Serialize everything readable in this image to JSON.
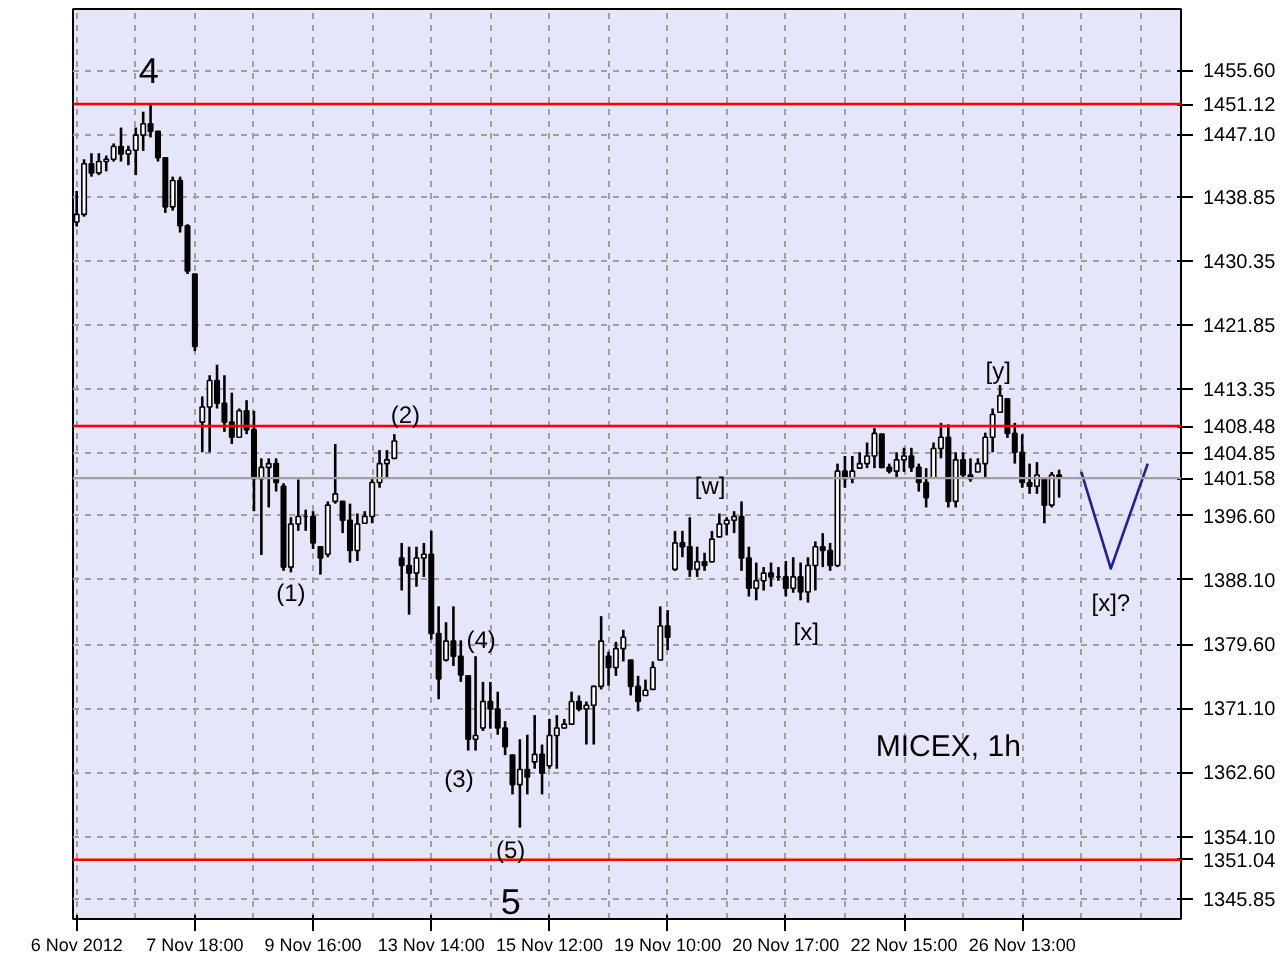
{
  "chart_data": {
    "type": "candlestick",
    "ylim": [
      1343.2,
      1463.7
    ],
    "categories": [
      "6 Nov 2012",
      null,
      null,
      null,
      null,
      null,
      null,
      null,
      null,
      null,
      null,
      null,
      null,
      null,
      null,
      null,
      "7 Nov 18:00",
      null,
      null,
      null,
      null,
      null,
      null,
      null,
      null,
      null,
      null,
      null,
      null,
      null,
      null,
      null,
      "9 Nov 16:00",
      null,
      null,
      null,
      null,
      null,
      null,
      null,
      null,
      null,
      null,
      null,
      null,
      null,
      null,
      null,
      "13 Nov 14:00",
      null,
      null,
      null,
      null,
      null,
      null,
      null,
      null,
      null,
      null,
      null,
      null,
      null,
      null,
      null,
      "15 Nov 12:00",
      null,
      null,
      null,
      null,
      null,
      null,
      null,
      null,
      null,
      null,
      null,
      null,
      null,
      null,
      null,
      "19 Nov 10:00",
      null,
      null,
      null,
      null,
      null,
      null,
      null,
      null,
      null,
      null,
      null,
      null,
      null,
      null,
      null,
      "20 Nov 17:00",
      null,
      null,
      null,
      null,
      null,
      null,
      null,
      null,
      null,
      null,
      null,
      null,
      null,
      null,
      null,
      "22 Nov 15:00",
      null,
      null,
      null,
      null,
      null,
      null,
      null,
      null,
      null,
      null,
      null,
      null,
      null,
      null,
      null,
      "26 Nov 13:00",
      null,
      null,
      null,
      null,
      null,
      null,
      null,
      null,
      null,
      null,
      null,
      null,
      null,
      null,
      null,
      null,
      null,
      null,
      null,
      null,
      null
    ],
    "yticks": [
      {
        "value": 1455.6,
        "label": "1455.60"
      },
      {
        "value": 1447.1,
        "label": "1447.10"
      },
      {
        "value": 1438.85,
        "label": "1438.85"
      },
      {
        "value": 1430.35,
        "label": "1430.35"
      },
      {
        "value": 1421.85,
        "label": "1421.85"
      },
      {
        "value": 1413.35,
        "label": "1413.35"
      },
      {
        "value": 1404.85,
        "label": "1404.85"
      },
      {
        "value": 1396.6,
        "label": "1396.60"
      },
      {
        "value": 1388.1,
        "label": "1388.10"
      },
      {
        "value": 1379.6,
        "label": "1379.60"
      },
      {
        "value": 1371.1,
        "label": "1371.10"
      },
      {
        "value": 1362.6,
        "label": "1362.60"
      },
      {
        "value": 1354.1,
        "label": "1354.10"
      },
      {
        "value": 1345.85,
        "label": "1345.85"
      }
    ],
    "grid": true,
    "series": [
      {
        "color": "#000000",
        "ohlc": [
          [
            1435.5,
            1439.6,
            1434.9,
            1436.5
          ],
          [
            1436.5,
            1443.8,
            1436.2,
            1443.2
          ],
          [
            1443.2,
            1444.6,
            1441.5,
            1442.0
          ],
          [
            1442.0,
            1444.6,
            1441.7,
            1443.5
          ],
          [
            1443.5,
            1444.3,
            1442.2,
            1443.8
          ],
          [
            1443.8,
            1445.9,
            1443.5,
            1445.5
          ],
          [
            1445.5,
            1448.0,
            1443.5,
            1444.5
          ],
          [
            1444.5,
            1445.6,
            1443.0,
            1445.0
          ],
          [
            1445.0,
            1448.0,
            1441.7,
            1447.0
          ],
          [
            1447.0,
            1450.1,
            1444.9,
            1448.5
          ],
          [
            1448.5,
            1451.0,
            1446.7,
            1447.5
          ],
          [
            1447.5,
            1447.5,
            1443.5,
            1444.0
          ],
          [
            1444.0,
            1444.1,
            1436.7,
            1437.5
          ],
          [
            1437.5,
            1441.5,
            1437.0,
            1441.0
          ],
          [
            1441.0,
            1441.5,
            1434.1,
            1435.0
          ],
          [
            1435.0,
            1435.2,
            1428.6,
            1429.0
          ],
          [
            1428.6,
            1428.6,
            1418.4,
            1419.0
          ],
          [
            1409.0,
            1412.4,
            1405.0,
            1411.0
          ],
          [
            1411.0,
            1415.2,
            1405.0,
            1414.5
          ],
          [
            1414.5,
            1416.6,
            1410.8,
            1411.5
          ],
          [
            1411.5,
            1415.2,
            1407.7,
            1409.0
          ],
          [
            1409.0,
            1412.9,
            1406.1,
            1407.0
          ],
          [
            1407.0,
            1410.8,
            1406.9,
            1410.5
          ],
          [
            1410.5,
            1411.9,
            1407.4,
            1408.0
          ],
          [
            1408.0,
            1410.5,
            1397.2,
            1401.5
          ],
          [
            1401.5,
            1404.2,
            1391.4,
            1403.0
          ],
          [
            1403.0,
            1404.2,
            1397.7,
            1403.5
          ],
          [
            1403.5,
            1404.2,
            1399.8,
            1401.0
          ],
          [
            1400.5,
            1400.9,
            1389.3,
            1389.8
          ],
          [
            1389.8,
            1396.4,
            1389.1,
            1395.5
          ],
          [
            1395.5,
            1401.4,
            1394.6,
            1396.5
          ],
          [
            1396.5,
            1397.4,
            1394.6,
            1396.5
          ],
          [
            1396.5,
            1397.2,
            1392.2,
            1393.0
          ],
          [
            1392.5,
            1392.5,
            1388.8,
            1391.0
          ],
          [
            1391.5,
            1398.5,
            1391.1,
            1398.0
          ],
          [
            1398.5,
            1406.1,
            1398.2,
            1399.5
          ],
          [
            1398.5,
            1398.5,
            1394.3,
            1396.0
          ],
          [
            1396.0,
            1398.2,
            1390.4,
            1392.0
          ],
          [
            1392.0,
            1396.9,
            1390.6,
            1395.5
          ],
          [
            1395.6,
            1397.2,
            1395.6,
            1396.5
          ],
          [
            1396.5,
            1401.6,
            1395.6,
            1401.0
          ],
          [
            1401.0,
            1405.3,
            1400.3,
            1403.5
          ],
          [
            1403.5,
            1405.3,
            1401.6,
            1404.0
          ],
          [
            1404.2,
            1407.4,
            1404.2,
            1406.5
          ],
          [
            1391.0,
            1393.0,
            1386.7,
            1390.0
          ],
          [
            1390.0,
            1392.5,
            1383.5,
            1389.0
          ],
          [
            1389.0,
            1392.5,
            1387.2,
            1391.0
          ],
          [
            1391.0,
            1393.0,
            1388.5,
            1391.5
          ],
          [
            1391.5,
            1394.6,
            1380.2,
            1381.0
          ],
          [
            1381.0,
            1384.6,
            1372.3,
            1375.0
          ],
          [
            1377.5,
            1382.5,
            1377.3,
            1380.0
          ],
          [
            1380.0,
            1384.6,
            1376.7,
            1378.0
          ],
          [
            1378.0,
            1380.1,
            1374.6,
            1375.5
          ],
          [
            1375.4,
            1375.4,
            1365.5,
            1367.0
          ],
          [
            1367.0,
            1378.0,
            1365.5,
            1367.5
          ],
          [
            1368.5,
            1374.6,
            1368.1,
            1372.0
          ],
          [
            1372.0,
            1374.6,
            1368.4,
            1371.0
          ],
          [
            1371.0,
            1373.3,
            1367.6,
            1368.5
          ],
          [
            1368.5,
            1369.4,
            1364.9,
            1366.0
          ],
          [
            1364.9,
            1364.9,
            1359.7,
            1361.0
          ],
          [
            1361.0,
            1367.0,
            1355.3,
            1363.0
          ],
          [
            1363.0,
            1367.6,
            1359.7,
            1362.0
          ],
          [
            1364.0,
            1370.2,
            1363.1,
            1365.0
          ],
          [
            1365.0,
            1366.3,
            1359.7,
            1362.5
          ],
          [
            1363.5,
            1369.7,
            1363.1,
            1367.5
          ],
          [
            1367.5,
            1370.2,
            1363.1,
            1368.5
          ],
          [
            1368.5,
            1369.7,
            1368.4,
            1369.0
          ],
          [
            1369.0,
            1373.3,
            1368.9,
            1372.0
          ],
          [
            1372.0,
            1372.8,
            1370.7,
            1371.0
          ],
          [
            1371.0,
            1372.0,
            1366.3,
            1371.5
          ],
          [
            1371.5,
            1374.1,
            1366.3,
            1374.0
          ],
          [
            1374.0,
            1383.3,
            1373.6,
            1380.0
          ],
          [
            1378.0,
            1378.6,
            1374.1,
            1376.5
          ],
          [
            1376.5,
            1379.9,
            1375.4,
            1379.0
          ],
          [
            1379.0,
            1381.5,
            1377.3,
            1380.5
          ],
          [
            1377.5,
            1377.5,
            1372.8,
            1374.0
          ],
          [
            1374.0,
            1375.4,
            1370.7,
            1372.0
          ],
          [
            1372.8,
            1374.9,
            1372.8,
            1373.5
          ],
          [
            1373.6,
            1377.3,
            1373.6,
            1376.5
          ],
          [
            1377.5,
            1384.6,
            1377.5,
            1382.0
          ],
          [
            1382.0,
            1384.1,
            1378.8,
            1380.5
          ],
          [
            1389.5,
            1394.6,
            1389.3,
            1393.0
          ],
          [
            1393.0,
            1394.6,
            1391.1,
            1392.5
          ],
          [
            1392.5,
            1396.4,
            1388.5,
            1389.5
          ],
          [
            1389.5,
            1392.5,
            1388.5,
            1390.5
          ],
          [
            1390.5,
            1391.7,
            1389.3,
            1390.0
          ],
          [
            1390.5,
            1394.6,
            1390.4,
            1393.5
          ],
          [
            1393.8,
            1396.9,
            1393.8,
            1395.5
          ],
          [
            1395.5,
            1396.4,
            1394.0,
            1396.0
          ],
          [
            1396.0,
            1397.2,
            1394.3,
            1396.5
          ],
          [
            1396.5,
            1398.5,
            1389.3,
            1391.0
          ],
          [
            1391.0,
            1392.5,
            1385.9,
            1387.0
          ],
          [
            1387.0,
            1390.4,
            1385.4,
            1388.0
          ],
          [
            1388.0,
            1389.8,
            1386.7,
            1389.0
          ],
          [
            1389.0,
            1390.4,
            1387.2,
            1388.5
          ],
          [
            1388.5,
            1389.8,
            1388.0,
            1388.5
          ],
          [
            1388.5,
            1390.6,
            1385.9,
            1387.0
          ],
          [
            1387.0,
            1391.1,
            1386.4,
            1388.5
          ],
          [
            1388.5,
            1390.4,
            1385.4,
            1386.5
          ],
          [
            1386.5,
            1391.1,
            1385.1,
            1390.0
          ],
          [
            1390.0,
            1393.2,
            1386.7,
            1392.5
          ],
          [
            1392.5,
            1394.3,
            1389.8,
            1392.0
          ],
          [
            1392.0,
            1393.0,
            1389.3,
            1390.0
          ],
          [
            1390.0,
            1403.5,
            1389.8,
            1402.5
          ],
          [
            1402.5,
            1404.5,
            1400.3,
            1401.5
          ],
          [
            1401.5,
            1404.5,
            1400.9,
            1402.5
          ],
          [
            1402.9,
            1405.0,
            1402.9,
            1403.5
          ],
          [
            1403.5,
            1406.3,
            1402.9,
            1404.5
          ],
          [
            1404.5,
            1408.2,
            1402.9,
            1407.5
          ],
          [
            1407.4,
            1407.4,
            1402.9,
            1403.0
          ],
          [
            1403.0,
            1403.5,
            1402.2,
            1402.5
          ],
          [
            1402.5,
            1405.0,
            1401.6,
            1404.0
          ],
          [
            1404.0,
            1405.6,
            1402.4,
            1404.5
          ],
          [
            1404.5,
            1405.6,
            1402.4,
            1403.0
          ],
          [
            1403.0,
            1403.5,
            1399.8,
            1401.0
          ],
          [
            1401.0,
            1402.9,
            1397.7,
            1399.0
          ],
          [
            1401.6,
            1406.3,
            1401.6,
            1405.5
          ],
          [
            1405.5,
            1408.9,
            1404.2,
            1407.0
          ],
          [
            1407.0,
            1408.7,
            1397.7,
            1398.5
          ],
          [
            1398.5,
            1405.0,
            1397.7,
            1404.0
          ],
          [
            1404.0,
            1405.0,
            1401.6,
            1402.0
          ],
          [
            1402.0,
            1404.2,
            1401.1,
            1401.5
          ],
          [
            1402.4,
            1404.2,
            1402.4,
            1403.5
          ],
          [
            1403.5,
            1407.6,
            1401.6,
            1407.0
          ],
          [
            1407.0,
            1410.8,
            1405.0,
            1410.0
          ],
          [
            1410.3,
            1413.9,
            1410.3,
            1412.5
          ],
          [
            1412.1,
            1412.1,
            1406.9,
            1407.5
          ],
          [
            1407.5,
            1408.9,
            1403.5,
            1405.0
          ],
          [
            1405.0,
            1407.4,
            1400.3,
            1401.0
          ],
          [
            1401.0,
            1403.5,
            1399.5,
            1400.5
          ],
          [
            1400.5,
            1403.7,
            1399.5,
            1402.0
          ],
          [
            1401.6,
            1401.6,
            1395.6,
            1398.0
          ],
          [
            1398.0,
            1402.4,
            1397.7,
            1402.0
          ],
          [
            1402.0,
            1402.7,
            1399.0,
            1401.58
          ],
          null,
          null,
          null,
          null,
          null,
          null,
          null,
          null,
          null,
          null,
          null,
          null,
          null,
          null,
          null,
          null
        ]
      },
      {
        "type": "line",
        "color": "#1f1fa0",
        "values": [
          null,
          null,
          null,
          null,
          null,
          null,
          null,
          null,
          null,
          null,
          null,
          null,
          null,
          null,
          null,
          null,
          null,
          null,
          null,
          null,
          null,
          null,
          null,
          null,
          null,
          null,
          null,
          null,
          null,
          null,
          null,
          null,
          null,
          null,
          null,
          null,
          null,
          null,
          null,
          null,
          null,
          null,
          null,
          null,
          null,
          null,
          null,
          null,
          null,
          null,
          null,
          null,
          null,
          null,
          null,
          null,
          null,
          null,
          null,
          null,
          null,
          null,
          null,
          null,
          null,
          null,
          null,
          null,
          null,
          null,
          null,
          null,
          null,
          null,
          null,
          null,
          null,
          null,
          null,
          null,
          null,
          null,
          null,
          null,
          null,
          null,
          null,
          null,
          null,
          null,
          null,
          null,
          null,
          null,
          null,
          null,
          null,
          null,
          null,
          null,
          null,
          null,
          null,
          null,
          null,
          null,
          null,
          null,
          null,
          null,
          null,
          null,
          null,
          null,
          null,
          null,
          null,
          null,
          null,
          null,
          null,
          null,
          null,
          null,
          null,
          null,
          null,
          null,
          null,
          null,
          null,
          null,
          null,
          null,
          null,
          null,
          1402.4,
          null,
          null,
          null,
          1389.6,
          null,
          null,
          null,
          null,
          1403.5,
          null,
          null,
          null,
          null
        ]
      }
    ],
    "ref_lines": [
      {
        "axis": "y",
        "value": 1451.12,
        "label": "1451.12",
        "color": "#ff0000"
      },
      {
        "axis": "y",
        "value": 1408.48,
        "label": "1408.48",
        "color": "#ff0000"
      },
      {
        "axis": "y",
        "value": 1401.58,
        "label": "1401.58",
        "color": "#a0a0a0"
      },
      {
        "axis": "y",
        "value": 1351.04,
        "label": "1351.04",
        "color": "#ff0000"
      }
    ],
    "annotations": [
      "4",
      "(1)",
      "(2)",
      "(3)",
      "(4)",
      "(5)",
      "5",
      "[w]",
      "[x]",
      "[y]",
      "[x]?",
      "MICEX, 1h"
    ]
  }
}
